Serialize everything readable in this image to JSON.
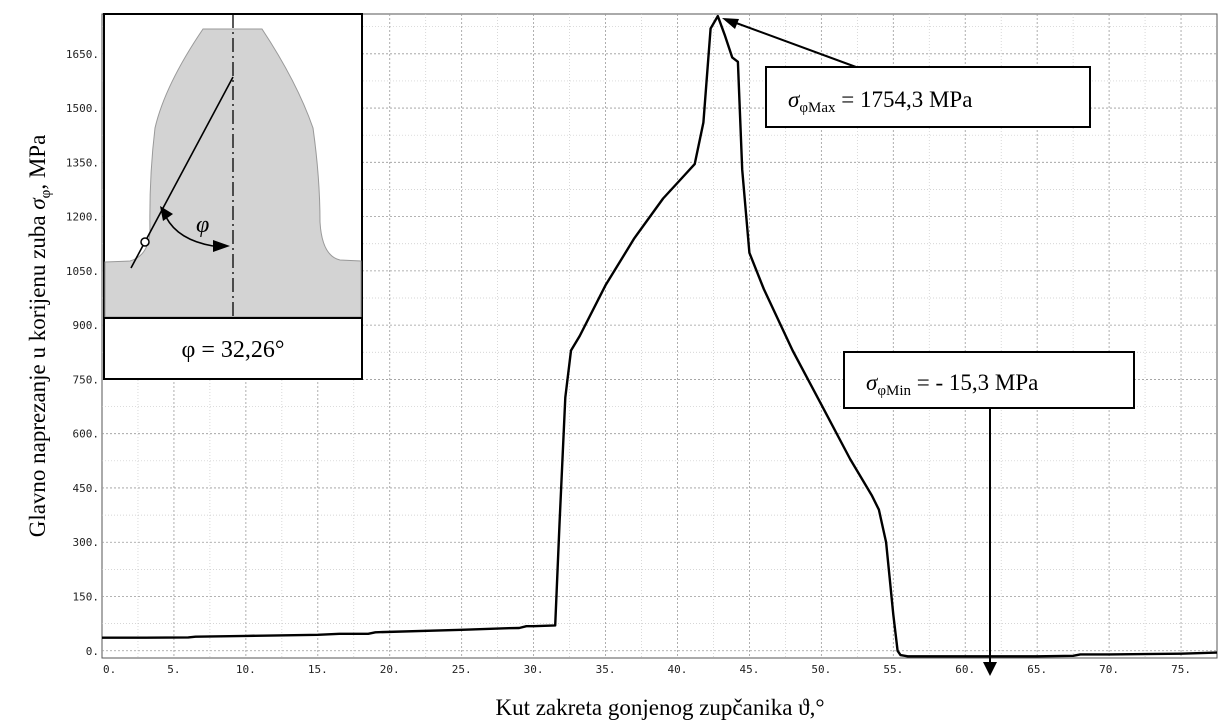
{
  "chart_data": {
    "type": "line",
    "title": "",
    "xlabel": "Kut zakreta gonjenog zupčanika ϑ,°",
    "ylabel_prefix": "Glavno naprezanje u korijenu zuba ",
    "ylabel_symbol": "σ",
    "ylabel_sub": "φ",
    "ylabel_suffix": ", MPa",
    "xlim": [
      0,
      77.5
    ],
    "ylim": [
      -20,
      1760
    ],
    "x_ticks": [
      0,
      5,
      10,
      15,
      20,
      25,
      30,
      35,
      40,
      45,
      50,
      55,
      60,
      65,
      70,
      75
    ],
    "x_tick_labels": [
      "0.",
      "5.",
      "10.",
      "15.",
      "20.",
      "25.",
      "30.",
      "35.",
      "40.",
      "45.",
      "50.",
      "55.",
      "60.",
      "65.",
      "70.",
      "75."
    ],
    "y_ticks": [
      0,
      150,
      300,
      450,
      600,
      750,
      900,
      1050,
      1200,
      1350,
      1500,
      1650
    ],
    "y_tick_labels": [
      "0.",
      "150.",
      "300.",
      "450.",
      "600.",
      "750.",
      "900.",
      "1050.",
      "1200.",
      "1350.",
      "1500.",
      "1650."
    ],
    "grid": true,
    "series": [
      {
        "x": [
          0,
          3,
          6,
          6.5,
          10,
          15,
          16.5,
          18.5,
          19,
          25,
          28,
          29,
          29.5,
          30,
          31.5,
          31.8,
          32.2,
          32.6,
          33.2,
          35,
          37,
          39,
          40.5,
          41.2,
          41.8,
          42.3,
          42.8,
          43.3,
          43.8,
          44.2,
          44.5,
          45,
          46,
          48,
          50,
          52,
          53.5,
          54,
          54.5,
          55,
          55.3,
          55.5,
          56,
          60,
          65,
          67.5,
          68,
          70,
          75,
          77.5
        ],
        "y": [
          36,
          36,
          37,
          39,
          41,
          44,
          47,
          47,
          51,
          58,
          62,
          63,
          68,
          68,
          70,
          350,
          700,
          830,
          870,
          1010,
          1140,
          1250,
          1315,
          1345,
          1460,
          1720,
          1754.3,
          1700,
          1640,
          1628,
          1330,
          1100,
          1000,
          830,
          680,
          530,
          430,
          390,
          300,
          100,
          0,
          -12,
          -15.3,
          -15.3,
          -15.3,
          -14,
          -10,
          -10,
          -8,
          -5
        ]
      }
    ],
    "annotations": {
      "max": {
        "x": 42.3,
        "y": 1754.3,
        "label_prefix": "σ",
        "label_sub": "φMax",
        "label_value": " = 1754,3 MPa"
      },
      "min": {
        "x": 61.5,
        "y": -15.3,
        "label_prefix": "σ",
        "label_sub": "φMin",
        "label_value": " = - 15,3 MPa"
      }
    },
    "inset": {
      "angle_symbol": "φ",
      "angle_label": "φ = 32,26°",
      "fill_color": "#d3d3d3"
    }
  }
}
